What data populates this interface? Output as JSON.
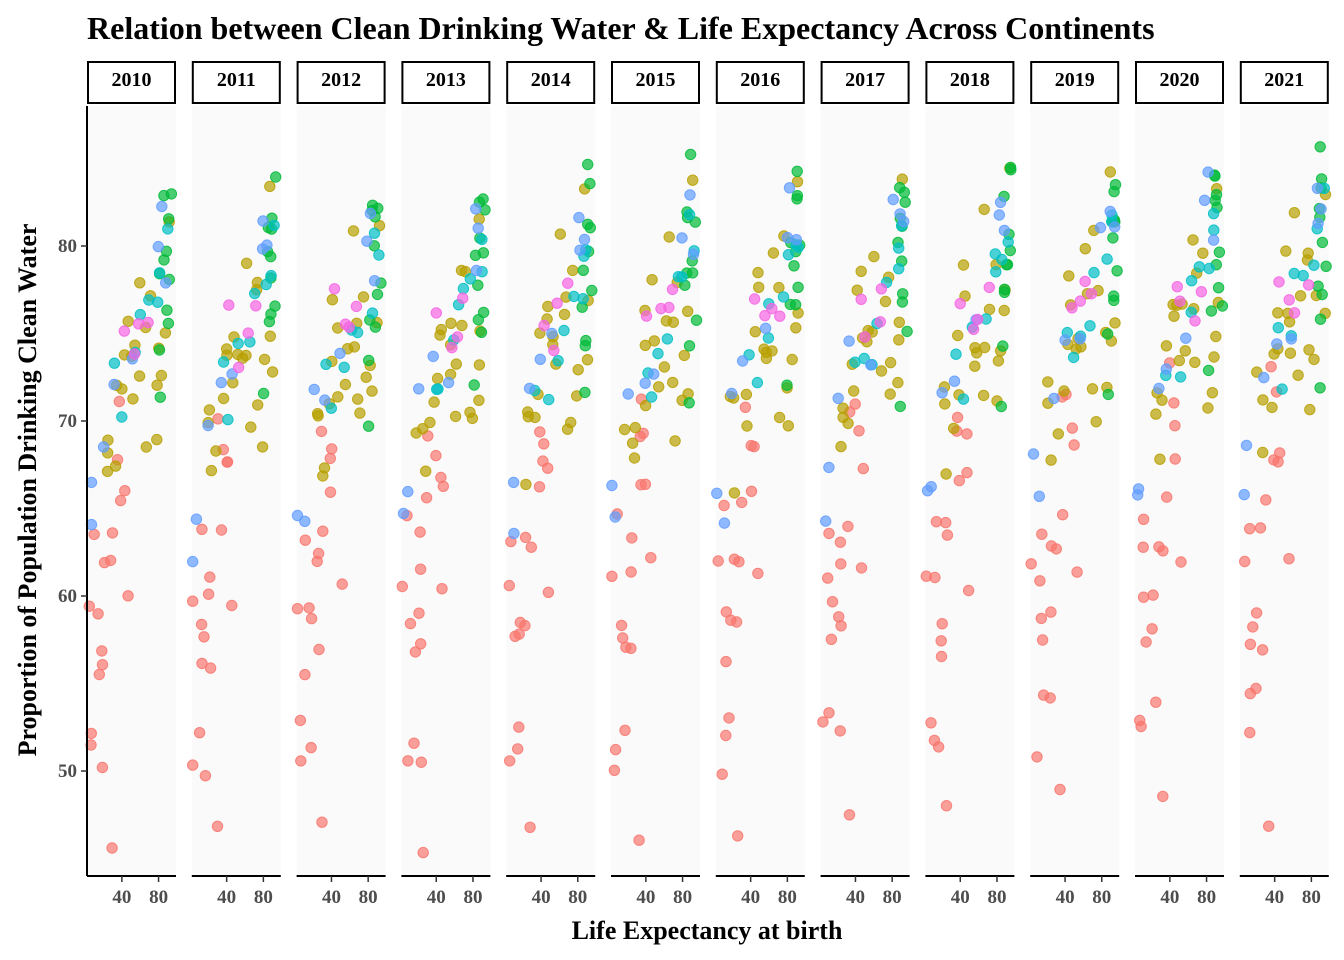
{
  "chart_data": {
    "type": "scatter",
    "title": "Relation between Clean Drinking Water & Life Expectancy Across Continents",
    "xlabel": "Life Expectancy at birth",
    "ylabel": "Proportion of Population Drinking Clean Water",
    "facet_labels": [
      "2010",
      "2011",
      "2012",
      "2013",
      "2014",
      "2015",
      "2016",
      "2017",
      "2018",
      "2019",
      "2020",
      "2021"
    ],
    "x_ticks": [
      40,
      80
    ],
    "y_ticks": [
      50,
      60,
      70,
      80
    ],
    "xlim": [
      2,
      99
    ],
    "ylim": [
      44,
      88
    ],
    "grid": false,
    "legend": "none",
    "series_colors": [
      "#F8766D",
      "#B79F00",
      "#00BA38",
      "#00BFC4",
      "#619CFF",
      "#F564E3"
    ],
    "panel_background": "#fafafa",
    "series": [
      {
        "color": "#F8766D",
        "points_2010": [
          [
            3,
            60
          ],
          [
            5,
            50
          ],
          [
            8,
            63
          ],
          [
            10,
            51
          ],
          [
            12,
            58
          ],
          [
            13,
            56
          ],
          [
            16,
            57
          ],
          [
            18,
            51
          ],
          [
            21,
            56
          ],
          [
            24,
            61
          ],
          [
            25,
            62
          ],
          [
            27,
            46
          ],
          [
            32,
            64
          ],
          [
            33,
            70
          ],
          [
            36,
            68
          ],
          [
            40,
            67
          ],
          [
            42,
            66
          ],
          [
            48,
            60
          ]
        ]
      },
      {
        "color": "#B79F00",
        "points_2010": [
          [
            20,
            69
          ],
          [
            22,
            69
          ],
          [
            25,
            66
          ],
          [
            30,
            68
          ],
          [
            34,
            71
          ],
          [
            38,
            73
          ],
          [
            42,
            75
          ],
          [
            45,
            76
          ],
          [
            50,
            72
          ],
          [
            52,
            74
          ],
          [
            55,
            73
          ],
          [
            60,
            74
          ],
          [
            62,
            79
          ],
          [
            65,
            70
          ],
          [
            68,
            76
          ],
          [
            72,
            78
          ],
          [
            75,
            69
          ],
          [
            78,
            71
          ],
          [
            82,
            72
          ],
          [
            85,
            74
          ],
          [
            88,
            75
          ],
          [
            90,
            82
          ]
        ]
      },
      {
        "color": "#00BA38",
        "points_2010": [
          [
            82,
            70
          ],
          [
            84,
            74
          ],
          [
            85,
            76
          ],
          [
            86,
            78
          ],
          [
            87,
            80
          ],
          [
            88,
            81
          ],
          [
            88,
            82
          ],
          [
            89,
            83
          ],
          [
            89,
            79
          ],
          [
            90,
            77
          ],
          [
            90,
            75
          ]
        ]
      },
      {
        "color": "#00BFC4",
        "points_2010": [
          [
            36,
            72
          ],
          [
            44,
            71
          ],
          [
            55,
            73
          ],
          [
            62,
            75
          ],
          [
            72,
            76
          ],
          [
            80,
            77
          ],
          [
            86,
            79
          ],
          [
            88,
            80
          ]
        ]
      },
      {
        "color": "#619CFF",
        "points_2010": [
          [
            4,
            65
          ],
          [
            6,
            63
          ],
          [
            22,
            70
          ],
          [
            34,
            72
          ],
          [
            50,
            73
          ],
          [
            78,
            80
          ],
          [
            82,
            81
          ],
          [
            86,
            79
          ]
        ]
      },
      {
        "color": "#F564E3",
        "points_2010": [
          [
            42,
            76
          ],
          [
            52,
            74
          ],
          [
            60,
            75
          ],
          [
            70,
            76
          ]
        ]
      }
    ]
  }
}
